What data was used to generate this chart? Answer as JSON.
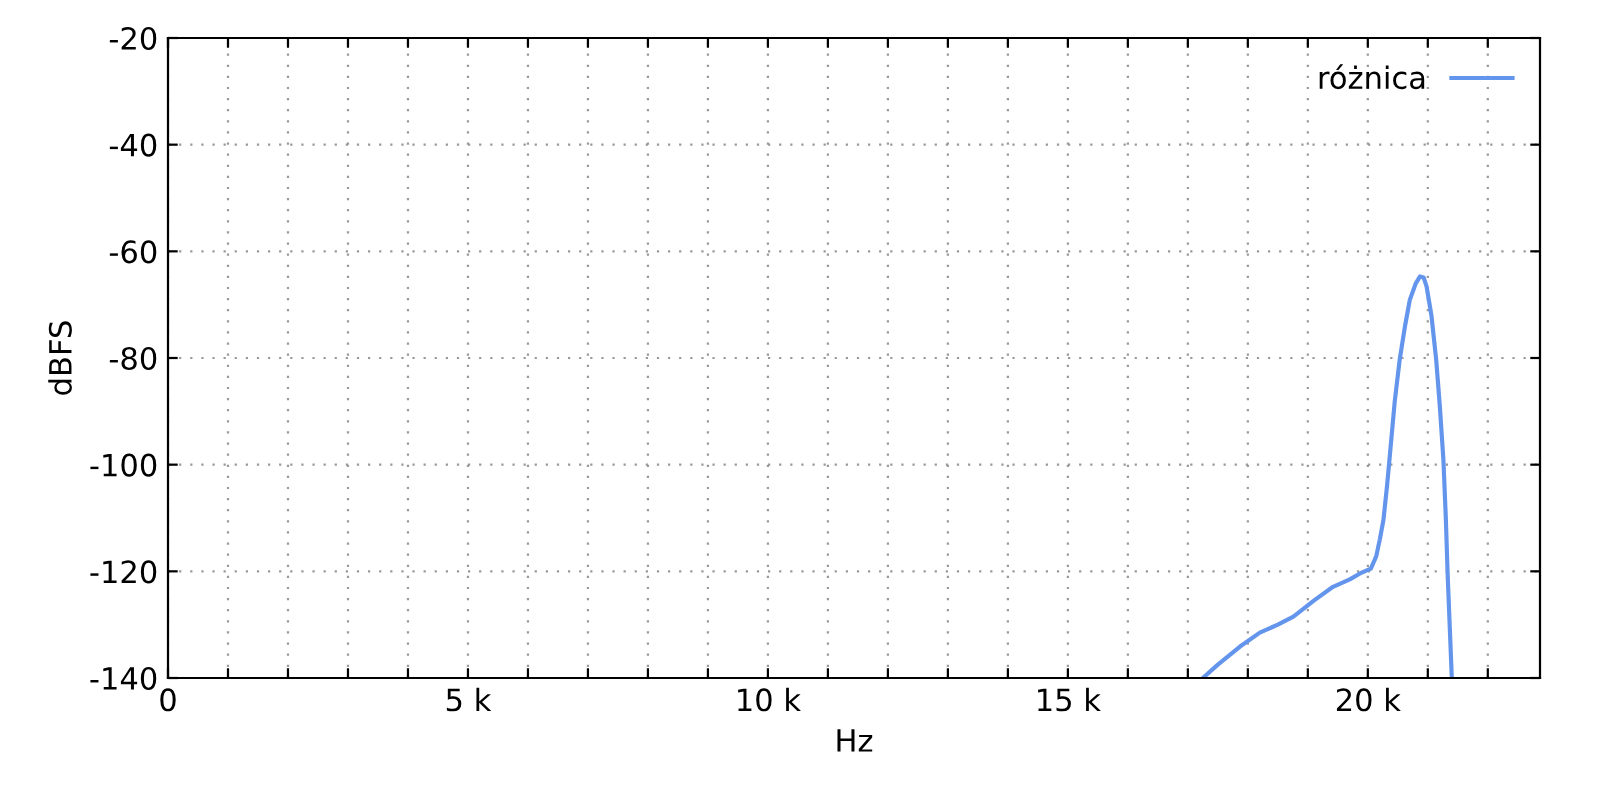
{
  "chart_data": {
    "type": "line",
    "xlabel": "Hz",
    "ylabel": "dBFS",
    "series": [
      {
        "name": "różnica",
        "color": "#6495ed",
        "x": [
          17250,
          17500,
          17870,
          18200,
          18500,
          18760,
          19100,
          19420,
          19700,
          19870,
          20050,
          20140,
          20200,
          20260,
          20320,
          20370,
          20450,
          20530,
          20620,
          20700,
          20800,
          20870,
          20930,
          20980,
          21060,
          21140,
          21200,
          21260,
          21300,
          21330,
          21400
        ],
        "values": [
          -140,
          -137.5,
          -134.1,
          -131.5,
          -130,
          -128.5,
          -125.5,
          -122.9,
          -121.5,
          -120.4,
          -119.5,
          -117.2,
          -114,
          -110.4,
          -104,
          -97.9,
          -88,
          -80.4,
          -74,
          -69.1,
          -66,
          -64.7,
          -64.9,
          -66.6,
          -72,
          -80.4,
          -89,
          -99.1,
          -110,
          -120.4,
          -140
        ]
      }
    ],
    "xlim": [
      0,
      22870
    ],
    "ylim": [
      -140,
      -20
    ],
    "xticks": [
      0,
      {
        "value": 1000,
        "label": null
      },
      {
        "value": 2000,
        "label": null
      },
      {
        "value": 3000,
        "label": null
      },
      {
        "value": 4000,
        "label": null
      },
      {
        "value": 5000,
        "label": "5 k"
      },
      {
        "value": 6000,
        "label": null
      },
      {
        "value": 7000,
        "label": null
      },
      {
        "value": 8000,
        "label": null
      },
      {
        "value": 9000,
        "label": null
      },
      {
        "value": 10000,
        "label": "10 k"
      },
      {
        "value": 11000,
        "label": null
      },
      {
        "value": 12000,
        "label": null
      },
      {
        "value": 13000,
        "label": null
      },
      {
        "value": 14000,
        "label": null
      },
      {
        "value": 15000,
        "label": "15 k"
      },
      {
        "value": 16000,
        "label": null
      },
      {
        "value": 17000,
        "label": null
      },
      {
        "value": 18000,
        "label": null
      },
      {
        "value": 19000,
        "label": null
      },
      {
        "value": 20000,
        "label": "20 k"
      },
      {
        "value": 21000,
        "label": null
      },
      {
        "value": 22000,
        "label": null
      }
    ],
    "yticks": [
      -140,
      -120,
      -100,
      -80,
      -60,
      -40,
      -20
    ],
    "grid": true,
    "legend": "top right",
    "line_style": "solid",
    "marker": "none"
  }
}
